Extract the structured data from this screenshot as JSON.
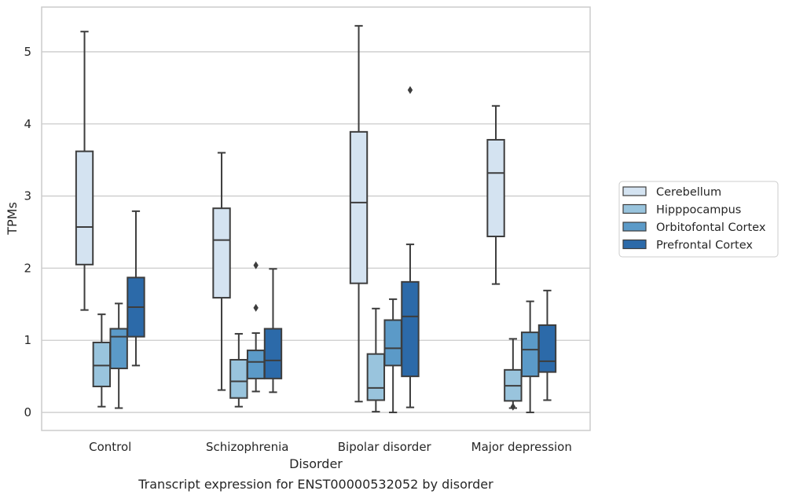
{
  "chart_data": {
    "type": "boxplot",
    "caption": "Transcript expression for ENST00000532052 by disorder",
    "xlabel": "Disorder",
    "ylabel": "TPMs",
    "ylim": [
      -0.25,
      5.62
    ],
    "yticks": [
      0,
      1,
      2,
      3,
      4,
      5
    ],
    "grid": true,
    "legend_position": "right",
    "categories": [
      "Control",
      "Schizophrenia",
      "Bipolar disorder",
      "Major depression"
    ],
    "series": [
      {
        "name": "Cerebellum",
        "color": "#d4e3f1",
        "boxes": [
          {
            "whislo": 1.42,
            "q1": 2.05,
            "med": 2.57,
            "q3": 3.62,
            "whishi": 5.28,
            "fliers": []
          },
          {
            "whislo": 0.31,
            "q1": 1.59,
            "med": 2.39,
            "q3": 2.83,
            "whishi": 3.6,
            "fliers": []
          },
          {
            "whislo": 0.15,
            "q1": 1.79,
            "med": 2.91,
            "q3": 3.89,
            "whishi": 5.36,
            "fliers": []
          },
          {
            "whislo": 1.78,
            "q1": 2.44,
            "med": 3.32,
            "q3": 3.78,
            "whishi": 4.25,
            "fliers": []
          }
        ]
      },
      {
        "name": "Hipppocampus",
        "color": "#99c4dd",
        "boxes": [
          {
            "whislo": 0.08,
            "q1": 0.36,
            "med": 0.65,
            "q3": 0.97,
            "whishi": 1.36,
            "fliers": []
          },
          {
            "whislo": 0.08,
            "q1": 0.2,
            "med": 0.43,
            "q3": 0.73,
            "whishi": 1.09,
            "fliers": []
          },
          {
            "whislo": 0.01,
            "q1": 0.17,
            "med": 0.34,
            "q3": 0.81,
            "whishi": 1.44,
            "fliers": []
          },
          {
            "whislo": 0.06,
            "q1": 0.16,
            "med": 0.37,
            "q3": 0.59,
            "whishi": 1.02,
            "fliers": [
              0.08
            ]
          }
        ]
      },
      {
        "name": "Orbitofontal Cortex",
        "color": "#5b9ac8",
        "boxes": [
          {
            "whislo": 0.06,
            "q1": 0.61,
            "med": 1.05,
            "q3": 1.16,
            "whishi": 1.51,
            "fliers": []
          },
          {
            "whislo": 0.29,
            "q1": 0.47,
            "med": 0.7,
            "q3": 0.86,
            "whishi": 1.1,
            "fliers": [
              1.45,
              2.04
            ]
          },
          {
            "whislo": 0.0,
            "q1": 0.65,
            "med": 0.89,
            "q3": 1.28,
            "whishi": 1.57,
            "fliers": []
          },
          {
            "whislo": 0.0,
            "q1": 0.5,
            "med": 0.87,
            "q3": 1.11,
            "whishi": 1.54,
            "fliers": []
          }
        ]
      },
      {
        "name": "Prefrontal Cortex",
        "color": "#2c6aa9",
        "boxes": [
          {
            "whislo": 0.65,
            "q1": 1.05,
            "med": 1.46,
            "q3": 1.87,
            "whishi": 2.79,
            "fliers": []
          },
          {
            "whislo": 0.28,
            "q1": 0.47,
            "med": 0.72,
            "q3": 1.16,
            "whishi": 1.99,
            "fliers": []
          },
          {
            "whislo": 0.07,
            "q1": 0.5,
            "med": 1.33,
            "q3": 1.81,
            "whishi": 2.33,
            "fliers": [
              4.47
            ]
          },
          {
            "whislo": 0.17,
            "q1": 0.56,
            "med": 0.71,
            "q3": 1.21,
            "whishi": 1.69,
            "fliers": []
          }
        ]
      }
    ]
  }
}
